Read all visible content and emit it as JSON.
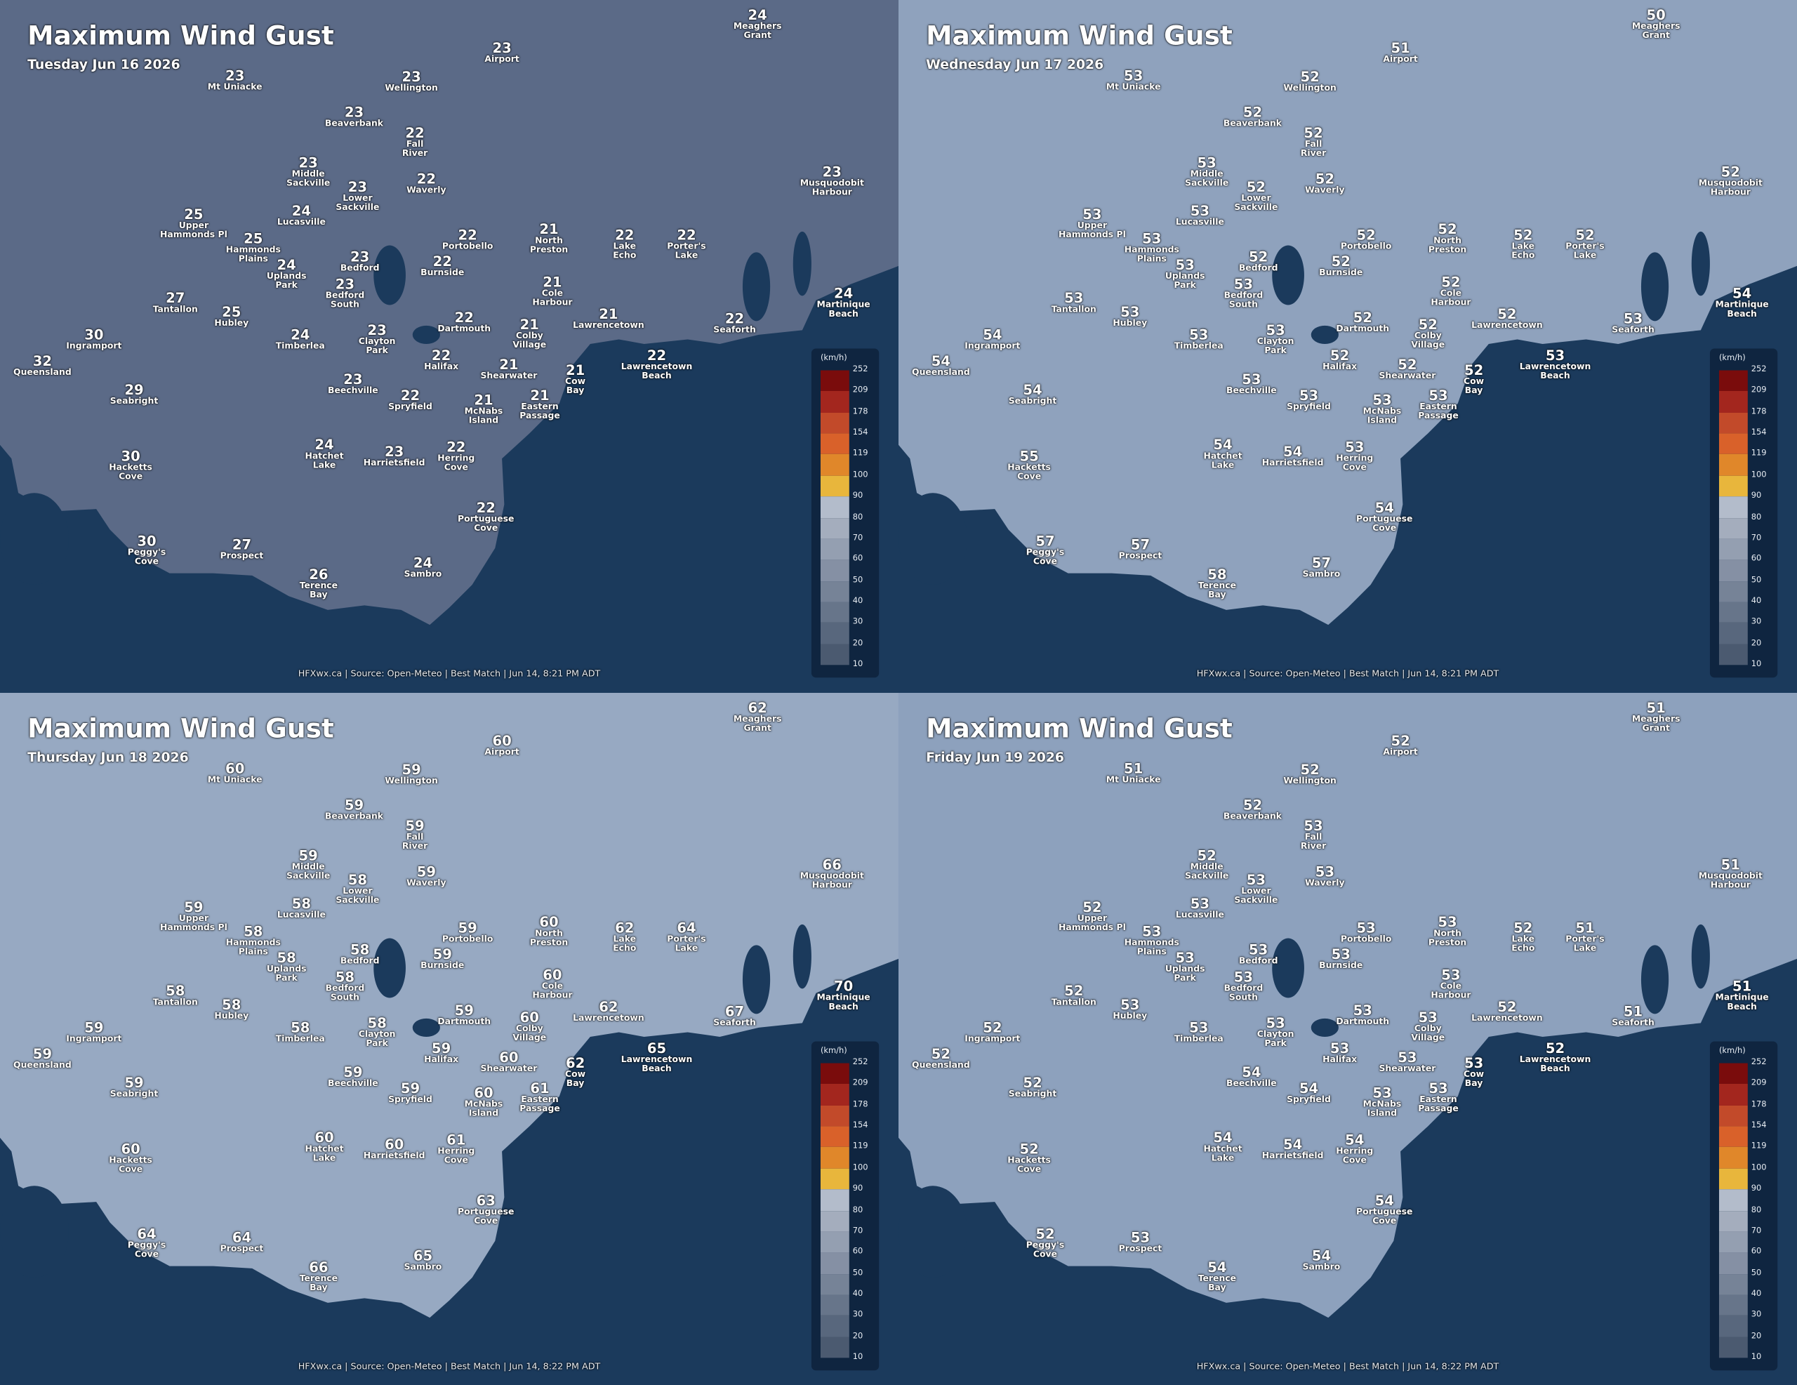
{
  "places": [
    "Meaghers\nGrant",
    "Airport",
    "Mt Uniacke",
    "Wellington",
    "Beaverbank",
    "Fall\nRiver",
    "Middle\nSackville",
    "Lower\nSackville",
    "Waverly",
    "Musquodobit\nHarbour",
    "Upper\nHammonds Pl",
    "Lucasville",
    "Hammonds\nPlains",
    "Portobello",
    "North\nPreston",
    "Lake\nEcho",
    "Porter's\nLake",
    "Bedford",
    "Burnside",
    "Uplands\nPark",
    "Bedford\nSouth",
    "Cole\nHarbour",
    "Tantallon",
    "Hubley",
    "Martinique\nBeach",
    "Dartmouth",
    "Lawrencetown",
    "Seaforth",
    "Ingramport",
    "Timberlea",
    "Clayton\nPark",
    "Colby\nVillage",
    "Queensland",
    "Halifax",
    "Shearwater",
    "Lawrencetown\nBeach",
    "Cow\nBay",
    "Seabright",
    "Beechville",
    "Spryfield",
    "McNabs\nIsland",
    "Eastern\nPassage",
    "Hatchet\nLake",
    "Harrietsfield",
    "Herring\nCove",
    "Hacketts\nCove",
    "Portuguese\nCove",
    "Peggy's\nCove",
    "Prospect",
    "Terence\nBay",
    "Sambro"
  ],
  "legend": {
    "unit": "(km/h)",
    "labels": [
      252,
      209,
      178,
      154,
      119,
      100,
      90,
      80,
      70,
      60,
      50,
      40,
      30,
      20,
      10
    ],
    "colors": [
      "#7a0c0c",
      "#a3261e",
      "#c24a2a",
      "#d9612a",
      "#e0872a",
      "#e8b63c",
      "#b3bccb",
      "#a4adbd",
      "#949fb1",
      "#8590a4",
      "#768397",
      "#67758a",
      "#58677d",
      "#4b5a70"
    ]
  },
  "panels": [
    {
      "title": "Maximum Wind Gust",
      "date": "Tuesday Jun 16 2026",
      "footer": "HFXwx.ca | Source: Open-Meteo | Best Match | Jun 14, 8:21 PM ADT",
      "land_color": "#5b6a87",
      "values": [
        24,
        23,
        23,
        23,
        23,
        22,
        23,
        23,
        22,
        23,
        25,
        24,
        25,
        22,
        21,
        22,
        22,
        23,
        22,
        24,
        23,
        21,
        27,
        25,
        24,
        22,
        21,
        22,
        30,
        24,
        23,
        21,
        32,
        22,
        21,
        22,
        21,
        29,
        23,
        22,
        21,
        21,
        24,
        23,
        22,
        30,
        22,
        30,
        27,
        26,
        24
      ]
    },
    {
      "title": "Maximum Wind Gust",
      "date": "Wednesday Jun 17 2026",
      "footer": "HFXwx.ca | Source: Open-Meteo | Best Match | Jun 14, 8:21 PM ADT",
      "land_color": "#8fa2bd",
      "values": [
        50,
        51,
        53,
        52,
        52,
        52,
        53,
        52,
        52,
        52,
        53,
        53,
        53,
        52,
        52,
        52,
        52,
        52,
        52,
        53,
        53,
        52,
        53,
        53,
        54,
        52,
        52,
        53,
        54,
        53,
        53,
        52,
        54,
        52,
        52,
        53,
        52,
        54,
        53,
        53,
        53,
        53,
        54,
        54,
        53,
        55,
        54,
        57,
        57,
        58,
        57
      ]
    },
    {
      "title": "Maximum Wind Gust",
      "date": "Thursday Jun 18 2026",
      "footer": "HFXwx.ca | Source: Open-Meteo | Best Match | Jun 14, 8:22 PM ADT",
      "land_color": "#97a9c2",
      "values": [
        62,
        60,
        60,
        59,
        59,
        59,
        59,
        58,
        59,
        66,
        59,
        58,
        58,
        59,
        60,
        62,
        64,
        58,
        59,
        58,
        58,
        60,
        58,
        58,
        70,
        59,
        62,
        67,
        59,
        58,
        58,
        60,
        59,
        59,
        60,
        65,
        62,
        59,
        59,
        59,
        60,
        61,
        60,
        60,
        61,
        60,
        63,
        64,
        64,
        66,
        65
      ]
    },
    {
      "title": "Maximum Wind Gust",
      "date": "Friday Jun 19 2026",
      "footer": "HFXwx.ca | Source: Open-Meteo | Best Match | Jun 14, 8:22 PM ADT",
      "land_color": "#8da1bd",
      "values": [
        51,
        52,
        51,
        52,
        52,
        53,
        52,
        53,
        53,
        51,
        52,
        53,
        53,
        53,
        53,
        52,
        51,
        53,
        53,
        53,
        53,
        53,
        52,
        53,
        51,
        53,
        52,
        51,
        52,
        53,
        53,
        53,
        52,
        53,
        53,
        52,
        53,
        52,
        54,
        54,
        53,
        53,
        54,
        54,
        54,
        52,
        54,
        52,
        53,
        54,
        54
      ]
    }
  ]
}
